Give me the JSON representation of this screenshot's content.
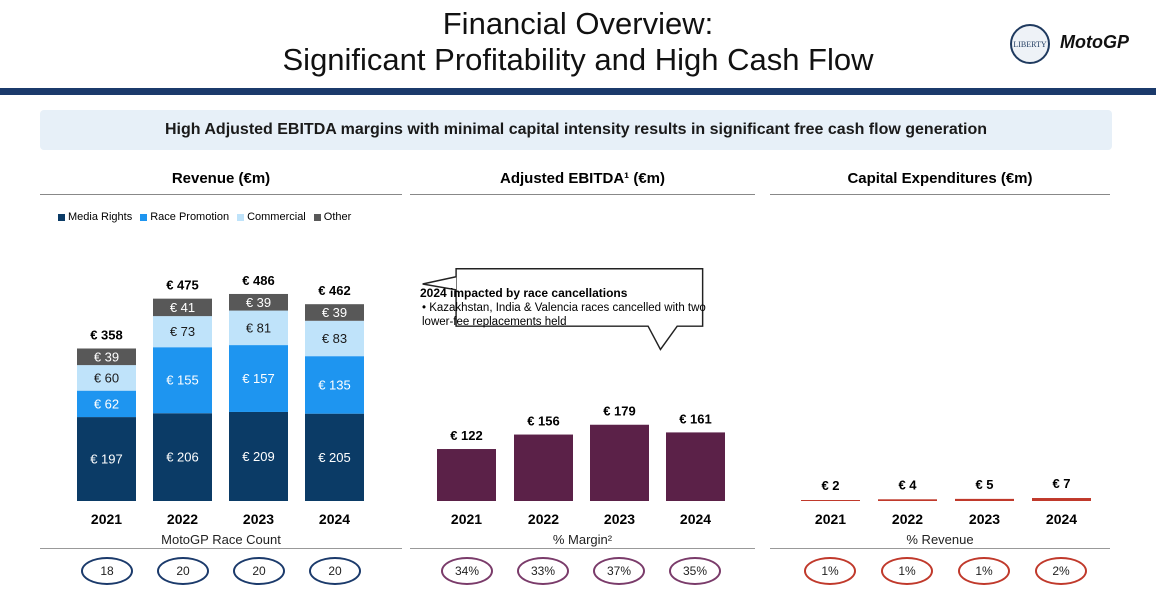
{
  "header": {
    "title_line1": "Financial Overview:",
    "title_line2": "Significant Profitability and High Cash Flow",
    "seal_text": "LIBERTY",
    "brand": "MotoGP"
  },
  "banner": "High Adjusted EBITDA margins with minimal capital intensity results in significant free cash flow generation",
  "colors": {
    "media_rights": "#0b3b66",
    "race_promotion": "#1e95f0",
    "commercial": "#bfe3fa",
    "other": "#585858",
    "ebitda": "#5b2148",
    "capex": "#c0392b",
    "rule": "#1b3a6b"
  },
  "callout": {
    "heading": "2024 impacted by race cancellations",
    "bullet": "• Kazakhstan, India & Valencia races cancelled with two lower-fee replacements held"
  },
  "chart_data": [
    {
      "type": "bar",
      "title": "Revenue (€m)",
      "stacked": true,
      "categories": [
        "2021",
        "2022",
        "2023",
        "2024"
      ],
      "series": [
        {
          "name": "Media Rights",
          "values": [
            197,
            206,
            209,
            205
          ],
          "labels": [
            "€ 197",
            "€ 206",
            "€ 209",
            "€ 205"
          ]
        },
        {
          "name": "Race Promotion",
          "values": [
            62,
            155,
            157,
            135
          ],
          "labels": [
            "€ 62",
            "€ 155",
            "€ 157",
            "€ 135"
          ]
        },
        {
          "name": "Commercial",
          "values": [
            60,
            73,
            81,
            83
          ],
          "labels": [
            "€ 60",
            "€ 73",
            "€ 81",
            "€ 83"
          ]
        },
        {
          "name": "Other",
          "values": [
            39,
            41,
            39,
            39
          ],
          "labels": [
            "€ 39",
            "€ 41",
            "€ 39",
            "€ 39"
          ]
        }
      ],
      "totals": [
        358,
        475,
        486,
        462
      ],
      "total_labels": [
        "€ 358",
        "€ 475",
        "€ 486",
        "€ 462"
      ],
      "footer_label": "MotoGP Race Count",
      "footer_values": [
        "18",
        "20",
        "20",
        "20"
      ]
    },
    {
      "type": "bar",
      "title": "Adjusted EBITDA¹ (€m)",
      "categories": [
        "2021",
        "2022",
        "2023",
        "2024"
      ],
      "values": [
        122,
        156,
        179,
        161
      ],
      "value_labels": [
        "€ 122",
        "€ 156",
        "€ 179",
        "€ 161"
      ],
      "footer_label": "% Margin²",
      "footer_values": [
        "34%",
        "33%",
        "37%",
        "35%"
      ]
    },
    {
      "type": "bar",
      "title": "Capital Expenditures (€m)",
      "categories": [
        "2021",
        "2022",
        "2023",
        "2024"
      ],
      "values": [
        2,
        4,
        5,
        7
      ],
      "value_labels": [
        "€ 2",
        "€ 4",
        "€ 5",
        "€ 7"
      ],
      "footer_label": "% Revenue",
      "footer_values": [
        "1%",
        "1%",
        "1%",
        "2%"
      ]
    }
  ]
}
